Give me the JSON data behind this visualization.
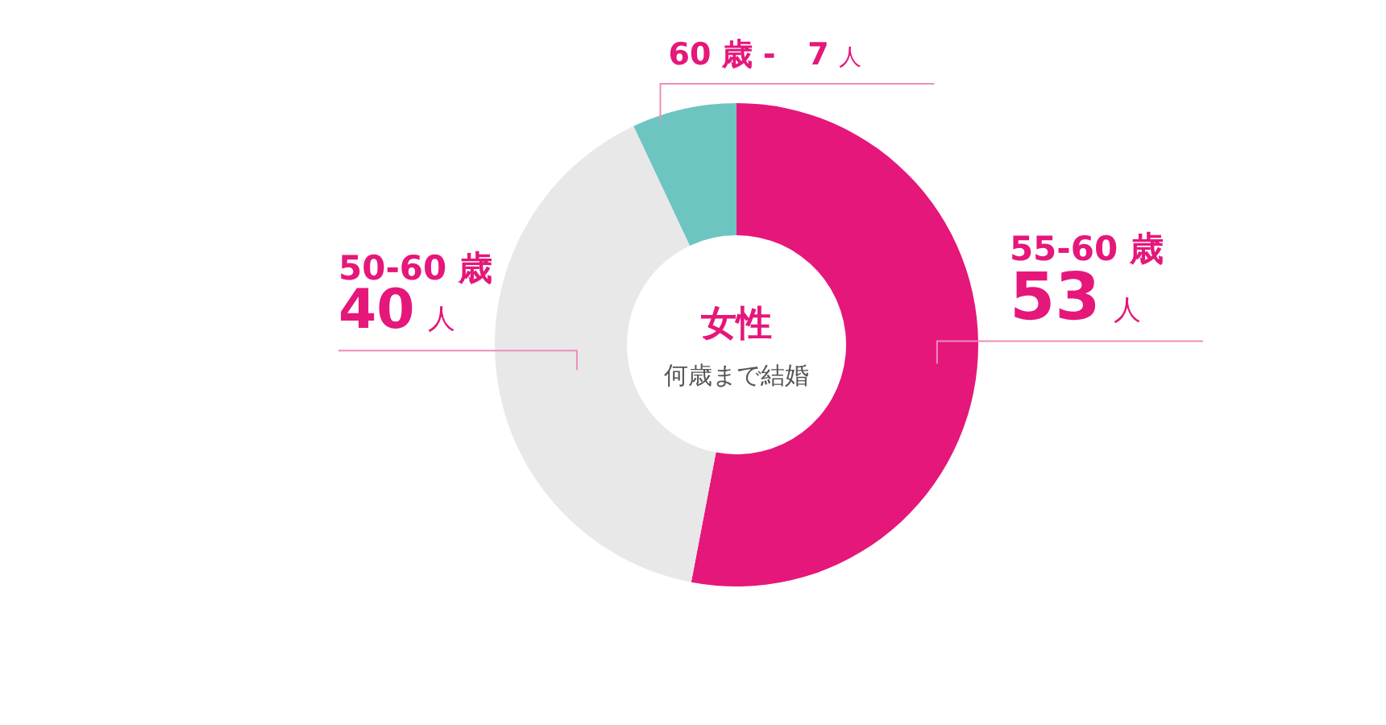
{
  "chart_data": {
    "type": "donut",
    "title": "女性",
    "subtitle": "何歳まで結婚",
    "categories": [
      "55-60 歳",
      "50-60 歳",
      "60 歳 -"
    ],
    "values": [
      53,
      40,
      7
    ],
    "colors": [
      "#e5177a",
      "#e8e8e8",
      "#6cc5c1"
    ],
    "value_labels": [
      "53 人",
      "40 人",
      "7 人"
    ]
  }
}
